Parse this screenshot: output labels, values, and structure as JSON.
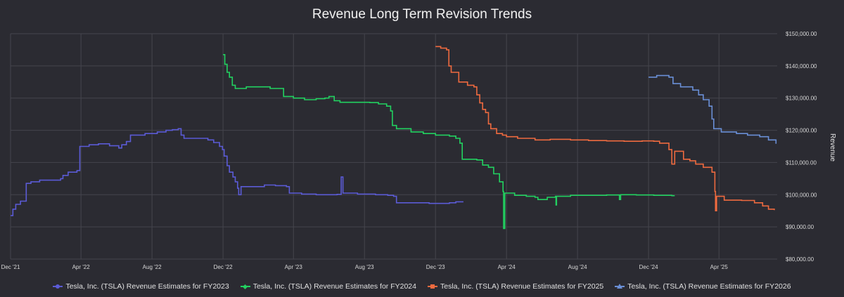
{
  "chart_data": {
    "type": "line",
    "title": "Revenue Long Term Revision Trends",
    "ylabel": "Revenue",
    "xlabel": "",
    "x_ticks": [
      "Dec '21",
      "Apr '22",
      "Aug '22",
      "Dec '22",
      "Apr '23",
      "Aug '23",
      "Dec '23",
      "Apr '24",
      "Aug '24",
      "Dec '24",
      "Apr '25"
    ],
    "y_ticks": [
      "$80,000.00",
      "$90,000.00",
      "$100,000.00",
      "$110,000.00",
      "$120,000.00",
      "$130,000.00",
      "$140,000.00",
      "$150,000.00"
    ],
    "ylim": [
      80000,
      150000
    ],
    "xlim": [
      "2021-12-01",
      "2025-07-10"
    ],
    "grid": true,
    "legend_position": "bottom",
    "series": [
      {
        "name": "Tesla, Inc. (TSLA) Revenue Estimates for FY2023",
        "color": "#5b5bd6",
        "marker": "circle",
        "points": [
          [
            "2021-12-01",
            93500
          ],
          [
            "2021-12-05",
            95500
          ],
          [
            "2021-12-10",
            97000
          ],
          [
            "2021-12-18",
            98000
          ],
          [
            "2021-12-25",
            98000
          ],
          [
            "2021-12-28",
            103500
          ],
          [
            "2022-01-05",
            104000
          ],
          [
            "2022-01-20",
            104500
          ],
          [
            "2022-02-10",
            104500
          ],
          [
            "2022-02-25",
            105000
          ],
          [
            "2022-03-01",
            106000
          ],
          [
            "2022-03-10",
            107000
          ],
          [
            "2022-03-25",
            107500
          ],
          [
            "2022-03-30",
            115000
          ],
          [
            "2022-04-15",
            115500
          ],
          [
            "2022-05-01",
            115800
          ],
          [
            "2022-05-20",
            115200
          ],
          [
            "2022-06-05",
            114500
          ],
          [
            "2022-06-10",
            115500
          ],
          [
            "2022-06-18",
            116500
          ],
          [
            "2022-06-25",
            118500
          ],
          [
            "2022-07-20",
            119000
          ],
          [
            "2022-08-10",
            119500
          ],
          [
            "2022-08-25",
            120000
          ],
          [
            "2022-09-05",
            120200
          ],
          [
            "2022-09-15",
            120500
          ],
          [
            "2022-09-20",
            118500
          ],
          [
            "2022-09-25",
            117500
          ],
          [
            "2022-10-20",
            117500
          ],
          [
            "2022-11-05",
            117000
          ],
          [
            "2022-11-15",
            116200
          ],
          [
            "2022-11-25",
            115000
          ],
          [
            "2022-11-30",
            114000
          ],
          [
            "2022-12-03",
            112000
          ],
          [
            "2022-12-08",
            109000
          ],
          [
            "2022-12-12",
            107000
          ],
          [
            "2022-12-18",
            105500
          ],
          [
            "2022-12-22",
            104000
          ],
          [
            "2022-12-26",
            102000
          ],
          [
            "2022-12-28",
            100000
          ],
          [
            "2023-01-01",
            102500
          ],
          [
            "2023-01-20",
            102500
          ],
          [
            "2023-02-10",
            103000
          ],
          [
            "2023-03-01",
            102800
          ],
          [
            "2023-03-20",
            102500
          ],
          [
            "2023-03-25",
            100500
          ],
          [
            "2023-04-15",
            100200
          ],
          [
            "2023-05-10",
            100000
          ],
          [
            "2023-06-01",
            100000
          ],
          [
            "2023-06-15",
            100100
          ],
          [
            "2023-06-22",
            105500
          ],
          [
            "2023-06-25",
            100500
          ],
          [
            "2023-07-20",
            100200
          ],
          [
            "2023-08-20",
            100000
          ],
          [
            "2023-09-10",
            99800
          ],
          [
            "2023-09-20",
            99500
          ],
          [
            "2023-09-25",
            97500
          ],
          [
            "2023-10-20",
            97500
          ],
          [
            "2023-11-20",
            97300
          ],
          [
            "2023-12-10",
            97300
          ],
          [
            "2023-12-25",
            97500
          ],
          [
            "2024-01-05",
            97800
          ],
          [
            "2024-01-18",
            97800
          ]
        ]
      },
      {
        "name": "Tesla, Inc. (TSLA) Revenue Estimates for FY2024",
        "color": "#22d160",
        "marker": "diamond",
        "points": [
          [
            "2022-12-01",
            143500
          ],
          [
            "2022-12-04",
            140500
          ],
          [
            "2022-12-08",
            138000
          ],
          [
            "2022-12-12",
            136500
          ],
          [
            "2022-12-17",
            134000
          ],
          [
            "2022-12-22",
            133000
          ],
          [
            "2023-01-10",
            133500
          ],
          [
            "2023-02-01",
            133500
          ],
          [
            "2023-02-20",
            133000
          ],
          [
            "2023-03-10",
            133000
          ],
          [
            "2023-03-15",
            130500
          ],
          [
            "2023-04-01",
            130000
          ],
          [
            "2023-04-20",
            129500
          ],
          [
            "2023-05-10",
            129800
          ],
          [
            "2023-05-25",
            130000
          ],
          [
            "2023-06-01",
            130500
          ],
          [
            "2023-06-10",
            129200
          ],
          [
            "2023-06-20",
            128700
          ],
          [
            "2023-07-15",
            128700
          ],
          [
            "2023-08-10",
            128600
          ],
          [
            "2023-08-25",
            128200
          ],
          [
            "2023-09-08",
            127500
          ],
          [
            "2023-09-15",
            126000
          ],
          [
            "2023-09-18",
            121500
          ],
          [
            "2023-09-25",
            120500
          ],
          [
            "2023-10-20",
            119500
          ],
          [
            "2023-11-10",
            119000
          ],
          [
            "2023-12-01",
            118500
          ],
          [
            "2023-12-25",
            118200
          ],
          [
            "2024-01-05",
            117500
          ],
          [
            "2024-01-12",
            116000
          ],
          [
            "2024-01-16",
            111000
          ],
          [
            "2024-01-25",
            111000
          ],
          [
            "2024-02-10",
            110800
          ],
          [
            "2024-02-20",
            109200
          ],
          [
            "2024-03-01",
            108500
          ],
          [
            "2024-03-10",
            106500
          ],
          [
            "2024-03-20",
            104000
          ],
          [
            "2024-03-26",
            101000
          ],
          [
            "2024-03-27",
            89500
          ],
          [
            "2024-03-29",
            100500
          ],
          [
            "2024-04-15",
            99800
          ],
          [
            "2024-05-05",
            99500
          ],
          [
            "2024-05-20",
            99200
          ],
          [
            "2024-05-25",
            98500
          ],
          [
            "2024-06-10",
            99200
          ],
          [
            "2024-06-24",
            99500
          ],
          [
            "2024-06-25",
            96800
          ],
          [
            "2024-06-26",
            99500
          ],
          [
            "2024-07-20",
            99800
          ],
          [
            "2024-08-20",
            99800
          ],
          [
            "2024-09-20",
            99900
          ],
          [
            "2024-10-10",
            99900
          ],
          [
            "2024-10-12",
            98500
          ],
          [
            "2024-10-14",
            100000
          ],
          [
            "2024-11-10",
            99900
          ],
          [
            "2024-12-10",
            99800
          ],
          [
            "2025-01-10",
            99700
          ],
          [
            "2025-01-15",
            99700
          ]
        ]
      },
      {
        "name": "Tesla, Inc. (TSLA) Revenue Estimates for FY2025",
        "color": "#ee6a3f",
        "marker": "square",
        "points": [
          [
            "2023-12-01",
            146000
          ],
          [
            "2023-12-10",
            145500
          ],
          [
            "2023-12-20",
            145000
          ],
          [
            "2023-12-24",
            140000
          ],
          [
            "2023-12-28",
            138000
          ],
          [
            "2024-01-10",
            135000
          ],
          [
            "2024-01-25",
            134000
          ],
          [
            "2024-02-05",
            133500
          ],
          [
            "2024-02-10",
            131000
          ],
          [
            "2024-02-15",
            128500
          ],
          [
            "2024-02-20",
            126500
          ],
          [
            "2024-02-25",
            125500
          ],
          [
            "2024-03-01",
            122000
          ],
          [
            "2024-03-05",
            120500
          ],
          [
            "2024-03-15",
            119000
          ],
          [
            "2024-03-25",
            118500
          ],
          [
            "2024-04-01",
            118000
          ],
          [
            "2024-04-20",
            117500
          ],
          [
            "2024-05-20",
            117000
          ],
          [
            "2024-06-15",
            117200
          ],
          [
            "2024-07-20",
            117000
          ],
          [
            "2024-08-20",
            116800
          ],
          [
            "2024-09-20",
            116700
          ],
          [
            "2024-10-20",
            116600
          ],
          [
            "2024-11-20",
            116700
          ],
          [
            "2024-12-10",
            116600
          ],
          [
            "2024-12-20",
            116000
          ],
          [
            "2025-01-05",
            114000
          ],
          [
            "2025-01-10",
            109500
          ],
          [
            "2025-01-15",
            113500
          ],
          [
            "2025-01-30",
            111000
          ],
          [
            "2025-02-10",
            110500
          ],
          [
            "2025-02-20",
            109500
          ],
          [
            "2025-03-05",
            108500
          ],
          [
            "2025-03-20",
            107000
          ],
          [
            "2025-03-25",
            101000
          ],
          [
            "2025-03-26",
            95000
          ],
          [
            "2025-03-28",
            99500
          ],
          [
            "2025-04-10",
            98300
          ],
          [
            "2025-05-10",
            98200
          ],
          [
            "2025-06-01",
            97500
          ],
          [
            "2025-06-15",
            96500
          ],
          [
            "2025-06-25",
            95500
          ],
          [
            "2025-07-05",
            95200
          ]
        ]
      },
      {
        "name": "Tesla, Inc. (TSLA) Revenue Estimates for FY2026",
        "color": "#6a8fd6",
        "marker": "triangle",
        "points": [
          [
            "2024-12-01",
            136500
          ],
          [
            "2024-12-15",
            137000
          ],
          [
            "2025-01-05",
            136500
          ],
          [
            "2025-01-12",
            134500
          ],
          [
            "2025-01-25",
            133500
          ],
          [
            "2025-02-05",
            133500
          ],
          [
            "2025-02-15",
            132500
          ],
          [
            "2025-02-25",
            131000
          ],
          [
            "2025-03-05",
            129500
          ],
          [
            "2025-03-15",
            127500
          ],
          [
            "2025-03-20",
            123500
          ],
          [
            "2025-03-23",
            120500
          ],
          [
            "2025-04-05",
            119500
          ],
          [
            "2025-05-01",
            119000
          ],
          [
            "2025-05-20",
            118500
          ],
          [
            "2025-06-10",
            118000
          ],
          [
            "2025-06-25",
            117000
          ],
          [
            "2025-07-08",
            115800
          ]
        ]
      }
    ]
  }
}
